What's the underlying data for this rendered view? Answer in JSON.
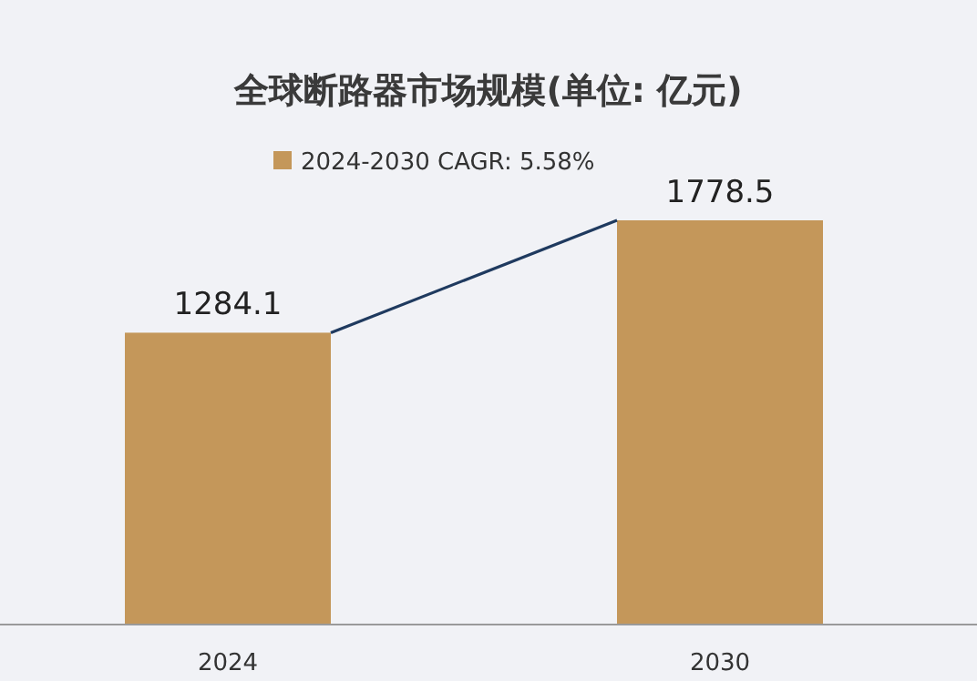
{
  "chart_data": {
    "type": "bar",
    "title": "全球断路器市场规模(单位: 亿元)",
    "categories": [
      "2024",
      "2030"
    ],
    "series": [
      {
        "name": "2024-2030 CAGR: 5.58%",
        "color": "#c4975a",
        "values": [
          1284.1,
          1778.5
        ]
      }
    ],
    "data_labels": true,
    "legend": "top"
  }
}
